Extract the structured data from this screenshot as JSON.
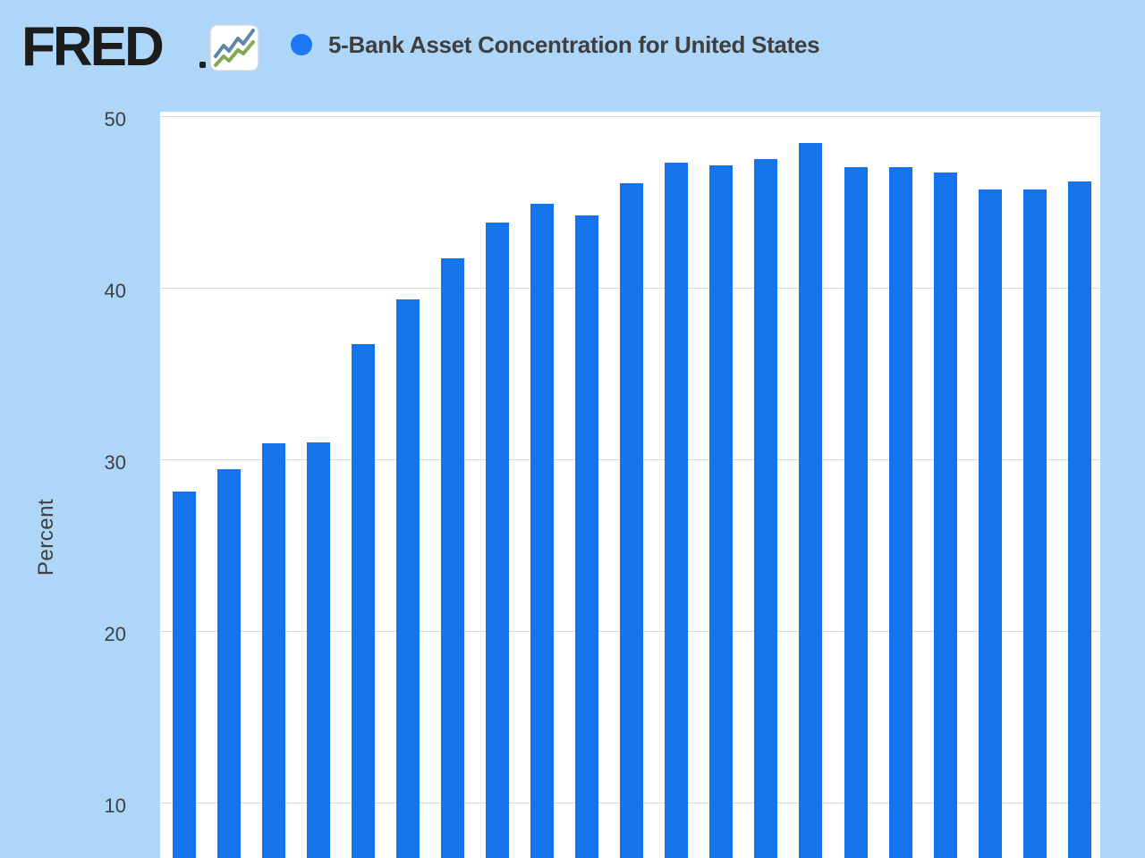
{
  "header": {
    "logo_text": "FRED",
    "logo_icon": "mini-line-chart-icon",
    "legend_marker": "blue-dot",
    "series_title": "5-Bank Asset Concentration for United States"
  },
  "y_axis": {
    "label": "Percent",
    "ticks": [
      50,
      40,
      30,
      20,
      10
    ]
  },
  "colors": {
    "page_background": "#aed6f8",
    "plot_background": "#ffffff",
    "bar": "#1574ec",
    "legend_dot": "#1b78f2",
    "gridline": "#d9d9d9",
    "text": "#3f3f3f",
    "logo": "#1c1c1c",
    "icon_line_blue": "#5d87a5",
    "icon_line_green": "#85a758"
  },
  "chart_data": {
    "type": "bar",
    "title": "5-Bank Asset Concentration for United States",
    "ylabel": "Percent",
    "unit": "percent",
    "values": [
      28.1,
      29.4,
      30.9,
      31.0,
      36.7,
      39.3,
      41.7,
      43.8,
      44.9,
      44.2,
      46.1,
      47.3,
      47.1,
      47.5,
      48.4,
      47.0,
      47.0,
      46.7,
      45.7,
      45.7,
      46.2
    ],
    "bar_count": 21,
    "yticks": [
      10,
      20,
      30,
      40,
      50
    ],
    "ylim_visible": [
      6.8,
      50.3
    ],
    "grid": "horizontal",
    "legend_position": "top",
    "note": "x-axis category labels are cropped below the visible viewport"
  }
}
